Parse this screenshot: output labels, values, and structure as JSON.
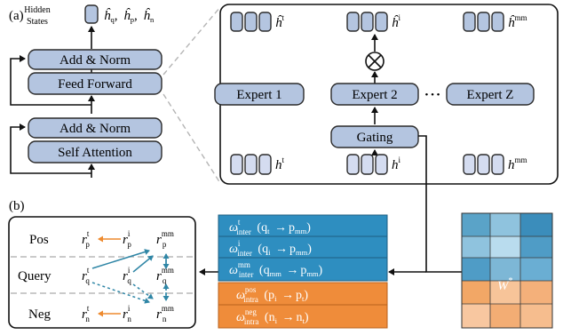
{
  "panel_a_label": "(a)",
  "panel_b_label": "(b)",
  "hidden_states": {
    "line1": "Hidden",
    "line2": "States",
    "vars": [
      {
        "base": "ĥ",
        "sub": "q",
        "sep": ","
      },
      {
        "base": "ĥ",
        "sub": "p",
        "sep": ","
      },
      {
        "base": "ĥ",
        "sub": "n",
        "sep": ""
      }
    ]
  },
  "transformer": {
    "add_norm_top": "Add & Norm",
    "feed_forward": "Feed Forward",
    "add_norm_bottom": "Add & Norm",
    "self_attention": "Self Attention"
  },
  "moe": {
    "experts": [
      "Expert 1",
      "Expert 2",
      "Expert Z"
    ],
    "ellipsis": "• • •",
    "gating": "Gating",
    "combine_symbol": "⊗",
    "output_labels": [
      {
        "base": "ĥ",
        "sup": "t"
      },
      {
        "base": "ĥ",
        "sup": "i"
      },
      {
        "base": "ĥ",
        "sup": "mm"
      }
    ],
    "input_labels": [
      {
        "base": "h",
        "sup": "t"
      },
      {
        "base": "h",
        "sup": "i"
      },
      {
        "base": "h",
        "sup": "mm"
      }
    ]
  },
  "alignment": {
    "rows": [
      {
        "label": "Pos",
        "nodes": [
          {
            "sup": "t",
            "sub": "p"
          },
          {
            "sup": "i",
            "sub": "p"
          },
          {
            "sup": "mm",
            "sub": "p"
          }
        ]
      },
      {
        "label": "Query",
        "nodes": [
          {
            "sup": "t",
            "sub": "q"
          },
          {
            "sup": "i",
            "sub": "q"
          },
          {
            "sup": "mm",
            "sub": "q"
          }
        ]
      },
      {
        "label": "Neg",
        "nodes": [
          {
            "sup": "t",
            "sub": "n"
          },
          {
            "sup": "i",
            "sub": "n"
          },
          {
            "sup": "mm",
            "sub": "n"
          }
        ]
      }
    ],
    "node_base": "r"
  },
  "weights": {
    "inter": [
      {
        "sup": "t",
        "sub": "inter",
        "from": "q",
        "from_sub": "t",
        "to": "p",
        "to_sub": "mm"
      },
      {
        "sup": "i",
        "sub": "inter",
        "from": "q",
        "from_sub": "i",
        "to": "p",
        "to_sub": "mm"
      },
      {
        "sup": "mm",
        "sub": "inter",
        "from": "q",
        "from_sub": "mm",
        "to": "p",
        "to_sub": "mm"
      }
    ],
    "intra": [
      {
        "sup": "pos",
        "sub": "intra",
        "from": "p",
        "from_sub": "i",
        "to": "p",
        "to_sub": "t"
      },
      {
        "sup": "neg",
        "sub": "intra",
        "from": "n",
        "from_sub": "i",
        "to": "n",
        "to_sub": "t"
      }
    ],
    "omega": "ω",
    "arrow": "→"
  },
  "matrix": {
    "label_base": "W",
    "label_sup": "*"
  },
  "colors": {
    "module_fill": "#b4c5e0",
    "module_stroke": "#2b2b2b",
    "inter_blue": "#2e8ec0",
    "intra_orange": "#ef8c3a",
    "teal_arrow": "#2f86a6",
    "orange_arrow": "#ee8a2e"
  }
}
